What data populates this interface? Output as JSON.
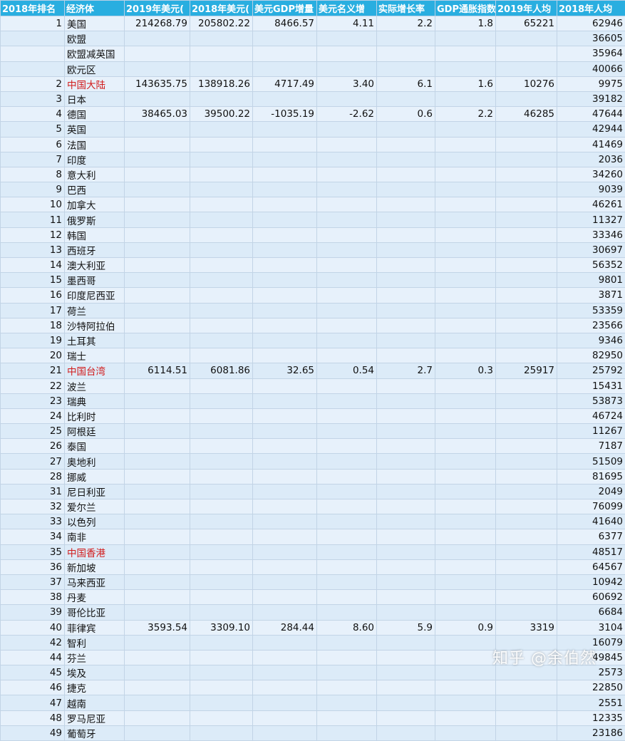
{
  "headers": [
    "2018年排名",
    "经济体",
    "2019年美元(",
    "2018年美元(",
    "美元GDP增量",
    "美元名义增",
    "实际增长率",
    "GDP通胀指数",
    "2019年人均",
    "2018年人均"
  ],
  "rows": [
    {
      "rank": "1",
      "name": "美国",
      "red": false,
      "gdp2019": "214268.79",
      "gdp2018": "205802.22",
      "increment": "8466.57",
      "nominal": "4.11",
      "real": "2.2",
      "deflator": "1.8",
      "pc2019": "65221",
      "pc2018": "62946"
    },
    {
      "rank": "",
      "name": "欧盟",
      "red": false,
      "gdp2019": "",
      "gdp2018": "",
      "increment": "",
      "nominal": "",
      "real": "",
      "deflator": "",
      "pc2019": "",
      "pc2018": "36605"
    },
    {
      "rank": "",
      "name": "欧盟减英国",
      "red": false,
      "gdp2019": "",
      "gdp2018": "",
      "increment": "",
      "nominal": "",
      "real": "",
      "deflator": "",
      "pc2019": "",
      "pc2018": "35964"
    },
    {
      "rank": "",
      "name": "欧元区",
      "red": false,
      "gdp2019": "",
      "gdp2018": "",
      "increment": "",
      "nominal": "",
      "real": "",
      "deflator": "",
      "pc2019": "",
      "pc2018": "40066"
    },
    {
      "rank": "2",
      "name": "中国大陆",
      "red": true,
      "gdp2019": "143635.75",
      "gdp2018": "138918.26",
      "increment": "4717.49",
      "nominal": "3.40",
      "real": "6.1",
      "deflator": "1.6",
      "pc2019": "10276",
      "pc2018": "9975"
    },
    {
      "rank": "3",
      "name": "日本",
      "red": false,
      "gdp2019": "",
      "gdp2018": "",
      "increment": "",
      "nominal": "",
      "real": "",
      "deflator": "",
      "pc2019": "",
      "pc2018": "39182"
    },
    {
      "rank": "4",
      "name": "德国",
      "red": false,
      "gdp2019": "38465.03",
      "gdp2018": "39500.22",
      "increment": "-1035.19",
      "nominal": "-2.62",
      "real": "0.6",
      "deflator": "2.2",
      "pc2019": "46285",
      "pc2018": "47644"
    },
    {
      "rank": "5",
      "name": "英国",
      "red": false,
      "gdp2019": "",
      "gdp2018": "",
      "increment": "",
      "nominal": "",
      "real": "",
      "deflator": "",
      "pc2019": "",
      "pc2018": "42944"
    },
    {
      "rank": "6",
      "name": "法国",
      "red": false,
      "gdp2019": "",
      "gdp2018": "",
      "increment": "",
      "nominal": "",
      "real": "",
      "deflator": "",
      "pc2019": "",
      "pc2018": "41469"
    },
    {
      "rank": "7",
      "name": "印度",
      "red": false,
      "gdp2019": "",
      "gdp2018": "",
      "increment": "",
      "nominal": "",
      "real": "",
      "deflator": "",
      "pc2019": "",
      "pc2018": "2036"
    },
    {
      "rank": "8",
      "name": "意大利",
      "red": false,
      "gdp2019": "",
      "gdp2018": "",
      "increment": "",
      "nominal": "",
      "real": "",
      "deflator": "",
      "pc2019": "",
      "pc2018": "34260"
    },
    {
      "rank": "9",
      "name": "巴西",
      "red": false,
      "gdp2019": "",
      "gdp2018": "",
      "increment": "",
      "nominal": "",
      "real": "",
      "deflator": "",
      "pc2019": "",
      "pc2018": "9039"
    },
    {
      "rank": "10",
      "name": "加拿大",
      "red": false,
      "gdp2019": "",
      "gdp2018": "",
      "increment": "",
      "nominal": "",
      "real": "",
      "deflator": "",
      "pc2019": "",
      "pc2018": "46261"
    },
    {
      "rank": "11",
      "name": "俄罗斯",
      "red": false,
      "gdp2019": "",
      "gdp2018": "",
      "increment": "",
      "nominal": "",
      "real": "",
      "deflator": "",
      "pc2019": "",
      "pc2018": "11327"
    },
    {
      "rank": "12",
      "name": "韩国",
      "red": false,
      "gdp2019": "",
      "gdp2018": "",
      "increment": "",
      "nominal": "",
      "real": "",
      "deflator": "",
      "pc2019": "",
      "pc2018": "33346"
    },
    {
      "rank": "13",
      "name": "西班牙",
      "red": false,
      "gdp2019": "",
      "gdp2018": "",
      "increment": "",
      "nominal": "",
      "real": "",
      "deflator": "",
      "pc2019": "",
      "pc2018": "30697"
    },
    {
      "rank": "14",
      "name": "澳大利亚",
      "red": false,
      "gdp2019": "",
      "gdp2018": "",
      "increment": "",
      "nominal": "",
      "real": "",
      "deflator": "",
      "pc2019": "",
      "pc2018": "56352"
    },
    {
      "rank": "15",
      "name": "墨西哥",
      "red": false,
      "gdp2019": "",
      "gdp2018": "",
      "increment": "",
      "nominal": "",
      "real": "",
      "deflator": "",
      "pc2019": "",
      "pc2018": "9801"
    },
    {
      "rank": "16",
      "name": "印度尼西亚",
      "red": false,
      "gdp2019": "",
      "gdp2018": "",
      "increment": "",
      "nominal": "",
      "real": "",
      "deflator": "",
      "pc2019": "",
      "pc2018": "3871"
    },
    {
      "rank": "17",
      "name": "荷兰",
      "red": false,
      "gdp2019": "",
      "gdp2018": "",
      "increment": "",
      "nominal": "",
      "real": "",
      "deflator": "",
      "pc2019": "",
      "pc2018": "53359"
    },
    {
      "rank": "18",
      "name": "沙特阿拉伯",
      "red": false,
      "gdp2019": "",
      "gdp2018": "",
      "increment": "",
      "nominal": "",
      "real": "",
      "deflator": "",
      "pc2019": "",
      "pc2018": "23566"
    },
    {
      "rank": "19",
      "name": "土耳其",
      "red": false,
      "gdp2019": "",
      "gdp2018": "",
      "increment": "",
      "nominal": "",
      "real": "",
      "deflator": "",
      "pc2019": "",
      "pc2018": "9346"
    },
    {
      "rank": "20",
      "name": "瑞士",
      "red": false,
      "gdp2019": "",
      "gdp2018": "",
      "increment": "",
      "nominal": "",
      "real": "",
      "deflator": "",
      "pc2019": "",
      "pc2018": "82950"
    },
    {
      "rank": "21",
      "name": "中国台湾",
      "red": true,
      "gdp2019": "6114.51",
      "gdp2018": "6081.86",
      "increment": "32.65",
      "nominal": "0.54",
      "real": "2.7",
      "deflator": "0.3",
      "pc2019": "25917",
      "pc2018": "25792"
    },
    {
      "rank": "22",
      "name": "波兰",
      "red": false,
      "gdp2019": "",
      "gdp2018": "",
      "increment": "",
      "nominal": "",
      "real": "",
      "deflator": "",
      "pc2019": "",
      "pc2018": "15431"
    },
    {
      "rank": "23",
      "name": "瑞典",
      "red": false,
      "gdp2019": "",
      "gdp2018": "",
      "increment": "",
      "nominal": "",
      "real": "",
      "deflator": "",
      "pc2019": "",
      "pc2018": "53873"
    },
    {
      "rank": "24",
      "name": "比利时",
      "red": false,
      "gdp2019": "",
      "gdp2018": "",
      "increment": "",
      "nominal": "",
      "real": "",
      "deflator": "",
      "pc2019": "",
      "pc2018": "46724"
    },
    {
      "rank": "25",
      "name": "阿根廷",
      "red": false,
      "gdp2019": "",
      "gdp2018": "",
      "increment": "",
      "nominal": "",
      "real": "",
      "deflator": "",
      "pc2019": "",
      "pc2018": "11267"
    },
    {
      "rank": "26",
      "name": "泰国",
      "red": false,
      "gdp2019": "",
      "gdp2018": "",
      "increment": "",
      "nominal": "",
      "real": "",
      "deflator": "",
      "pc2019": "",
      "pc2018": "7187"
    },
    {
      "rank": "27",
      "name": "奥地利",
      "red": false,
      "gdp2019": "",
      "gdp2018": "",
      "increment": "",
      "nominal": "",
      "real": "",
      "deflator": "",
      "pc2019": "",
      "pc2018": "51509"
    },
    {
      "rank": "28",
      "name": "挪威",
      "red": false,
      "gdp2019": "",
      "gdp2018": "",
      "increment": "",
      "nominal": "",
      "real": "",
      "deflator": "",
      "pc2019": "",
      "pc2018": "81695"
    },
    {
      "rank": "31",
      "name": "尼日利亚",
      "red": false,
      "gdp2019": "",
      "gdp2018": "",
      "increment": "",
      "nominal": "",
      "real": "",
      "deflator": "",
      "pc2019": "",
      "pc2018": "2049"
    },
    {
      "rank": "32",
      "name": "爱尔兰",
      "red": false,
      "gdp2019": "",
      "gdp2018": "",
      "increment": "",
      "nominal": "",
      "real": "",
      "deflator": "",
      "pc2019": "",
      "pc2018": "76099"
    },
    {
      "rank": "33",
      "name": "以色列",
      "red": false,
      "gdp2019": "",
      "gdp2018": "",
      "increment": "",
      "nominal": "",
      "real": "",
      "deflator": "",
      "pc2019": "",
      "pc2018": "41640"
    },
    {
      "rank": "34",
      "name": "南非",
      "red": false,
      "gdp2019": "",
      "gdp2018": "",
      "increment": "",
      "nominal": "",
      "real": "",
      "deflator": "",
      "pc2019": "",
      "pc2018": "6377"
    },
    {
      "rank": "35",
      "name": "中国香港",
      "red": true,
      "gdp2019": "",
      "gdp2018": "",
      "increment": "",
      "nominal": "",
      "real": "",
      "deflator": "",
      "pc2019": "",
      "pc2018": "48517"
    },
    {
      "rank": "36",
      "name": "新加坡",
      "red": false,
      "gdp2019": "",
      "gdp2018": "",
      "increment": "",
      "nominal": "",
      "real": "",
      "deflator": "",
      "pc2019": "",
      "pc2018": "64567"
    },
    {
      "rank": "37",
      "name": "马来西亚",
      "red": false,
      "gdp2019": "",
      "gdp2018": "",
      "increment": "",
      "nominal": "",
      "real": "",
      "deflator": "",
      "pc2019": "",
      "pc2018": "10942"
    },
    {
      "rank": "38",
      "name": "丹麦",
      "red": false,
      "gdp2019": "",
      "gdp2018": "",
      "increment": "",
      "nominal": "",
      "real": "",
      "deflator": "",
      "pc2019": "",
      "pc2018": "60692"
    },
    {
      "rank": "39",
      "name": "哥伦比亚",
      "red": false,
      "gdp2019": "",
      "gdp2018": "",
      "increment": "",
      "nominal": "",
      "real": "",
      "deflator": "",
      "pc2019": "",
      "pc2018": "6684"
    },
    {
      "rank": "40",
      "name": "菲律宾",
      "red": false,
      "gdp2019": "3593.54",
      "gdp2018": "3309.10",
      "increment": "284.44",
      "nominal": "8.60",
      "real": "5.9",
      "deflator": "0.9",
      "pc2019": "3319",
      "pc2018": "3104"
    },
    {
      "rank": "42",
      "name": "智利",
      "red": false,
      "gdp2019": "",
      "gdp2018": "",
      "increment": "",
      "nominal": "",
      "real": "",
      "deflator": "",
      "pc2019": "",
      "pc2018": "16079"
    },
    {
      "rank": "44",
      "name": "芬兰",
      "red": false,
      "gdp2019": "",
      "gdp2018": "",
      "increment": "",
      "nominal": "",
      "real": "",
      "deflator": "",
      "pc2019": "",
      "pc2018": "49845"
    },
    {
      "rank": "45",
      "name": "埃及",
      "red": false,
      "gdp2019": "",
      "gdp2018": "",
      "increment": "",
      "nominal": "",
      "real": "",
      "deflator": "",
      "pc2019": "",
      "pc2018": "2573"
    },
    {
      "rank": "46",
      "name": "捷克",
      "red": false,
      "gdp2019": "",
      "gdp2018": "",
      "increment": "",
      "nominal": "",
      "real": "",
      "deflator": "",
      "pc2019": "",
      "pc2018": "22850"
    },
    {
      "rank": "47",
      "name": "越南",
      "red": false,
      "gdp2019": "",
      "gdp2018": "",
      "increment": "",
      "nominal": "",
      "real": "",
      "deflator": "",
      "pc2019": "",
      "pc2018": "2551"
    },
    {
      "rank": "48",
      "name": "罗马尼亚",
      "red": false,
      "gdp2019": "",
      "gdp2018": "",
      "increment": "",
      "nominal": "",
      "real": "",
      "deflator": "",
      "pc2019": "",
      "pc2018": "12335"
    },
    {
      "rank": "49",
      "name": "葡萄牙",
      "red": false,
      "gdp2019": "",
      "gdp2018": "",
      "increment": "",
      "nominal": "",
      "real": "",
      "deflator": "",
      "pc2019": "",
      "pc2018": "23186"
    }
  ],
  "watermark": "知乎 @余伯然",
  "colors": {
    "header_bg": "#29aee0",
    "row_bg": "#e7f1fb",
    "highlight_text": "#d11a1a"
  }
}
